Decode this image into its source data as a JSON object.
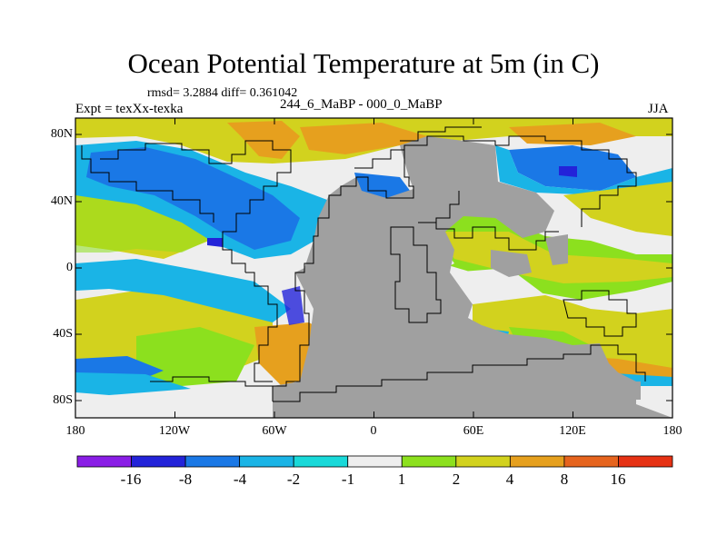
{
  "header": {
    "title": "Ocean Potential Temperature at 5m (in C)",
    "stats": "rmsd= 3.2884 diff= 0.361042",
    "expt": "Expt = texXx-texka",
    "subtitle": "244_6_MaBP - 000_0_MaBP",
    "season": "JJA"
  },
  "axes": {
    "lat_labels": [
      "80N",
      "40N",
      "0",
      "40S",
      "80S"
    ],
    "lon_labels": [
      "180",
      "120W",
      "60W",
      "0",
      "60E",
      "120E",
      "180"
    ]
  },
  "colorbar": {
    "labels": [
      "-16",
      "-8",
      "-4",
      "-2",
      "-1",
      "1",
      "2",
      "4",
      "8",
      "16"
    ],
    "colors": [
      "#8a1ee6",
      "#2323d9",
      "#1a78e6",
      "#1ab4e6",
      "#19d9d9",
      "#eeeeee",
      "#8ce01e",
      "#d2d21e",
      "#e6a01e",
      "#e6641e",
      "#e63214"
    ]
  },
  "map_colors": {
    "land": "#a0a0a0",
    "ocean_base": "#eeeeee",
    "coast": "#000000"
  }
}
